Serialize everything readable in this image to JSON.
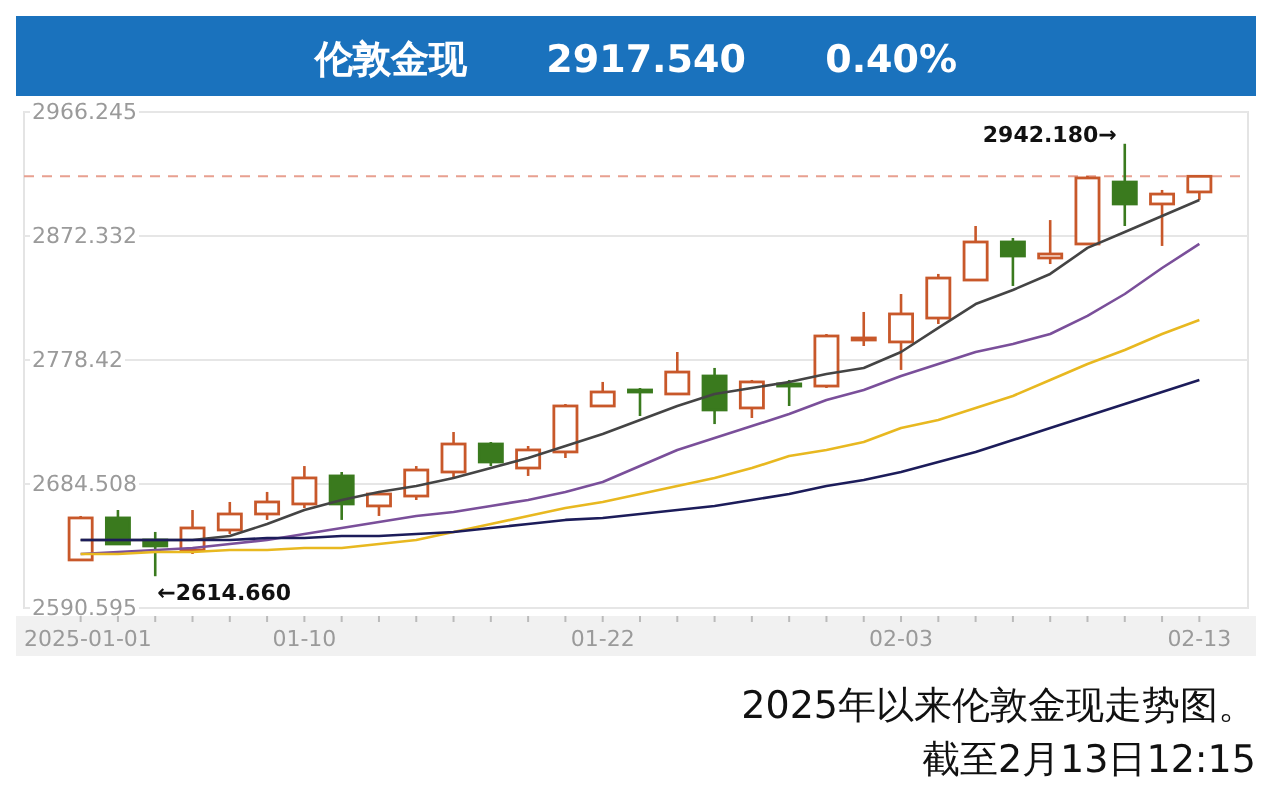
{
  "chart_data": {
    "type": "candlestick",
    "title": "伦敦金现      2917.540      0.40%",
    "annotations": [
      "2942.180→",
      "←2614.660",
      "2025年以来伦敦金现走势图。",
      "截至2月13日12:15"
    ],
    "categories": [
      "2025-01-01",
      null,
      null,
      null,
      null,
      null,
      "01-10",
      null,
      null,
      null,
      null,
      null,
      null,
      null,
      "01-22",
      null,
      null,
      null,
      null,
      null,
      null,
      null,
      "02-03",
      null,
      null,
      null,
      null,
      null,
      null,
      null,
      "02-13"
    ],
    "ohlc": [
      [
        2627.0,
        2660.3,
        2627.0,
        2658.8
      ],
      [
        2658.8,
        2664.8,
        2639.1,
        2639.1
      ],
      [
        2642.1,
        2648.2,
        2614.66,
        2637.6
      ],
      [
        2634.5,
        2664.8,
        2631.5,
        2651.2
      ],
      [
        2649.7,
        2670.9,
        2646.6,
        2661.8
      ],
      [
        2661.8,
        2678.5,
        2657.3,
        2670.9
      ],
      [
        2669.4,
        2698.1,
        2666.3,
        2689.1
      ],
      [
        2690.6,
        2693.6,
        2657.3,
        2669.4
      ],
      [
        2667.9,
        2678.5,
        2660.3,
        2676.9
      ],
      [
        2675.4,
        2698.1,
        2672.4,
        2695.1
      ],
      [
        2693.6,
        2723.9,
        2689.1,
        2714.8
      ],
      [
        2714.8,
        2716.3,
        2698.1,
        2701.2
      ],
      [
        2696.6,
        2713.3,
        2690.6,
        2710.3
      ],
      [
        2708.8,
        2745.1,
        2704.2,
        2743.6
      ],
      [
        2743.6,
        2761.8,
        2743.6,
        2754.2
      ],
      [
        2755.7,
        2757.2,
        2736.0,
        2754.2
      ],
      [
        2752.7,
        2784.5,
        2752.7,
        2769.3
      ],
      [
        2766.3,
        2772.4,
        2729.9,
        2740.6
      ],
      [
        2742.1,
        2763.3,
        2734.5,
        2761.8
      ],
      [
        2760.3,
        2763.3,
        2743.6,
        2758.7
      ],
      [
        2758.7,
        2798.1,
        2757.2,
        2796.6
      ],
      [
        2793.6,
        2814.8,
        2789.0,
        2795.1
      ],
      [
        2792.1,
        2828.4,
        2770.9,
        2813.3
      ],
      [
        2810.2,
        2843.6,
        2805.7,
        2840.5
      ],
      [
        2839.0,
        2879.9,
        2839.0,
        2867.8
      ],
      [
        2867.8,
        2870.8,
        2834.5,
        2857.2
      ],
      [
        2855.7,
        2884.4,
        2851.1,
        2858.7
      ],
      [
        2866.3,
        2917.8,
        2866.3,
        2916.3
      ],
      [
        2913.2,
        2942.18,
        2879.9,
        2896.6
      ],
      [
        2896.6,
        2907.2,
        2864.8,
        2904.1
      ],
      [
        2905.7,
        2917.54,
        2899.6,
        2917.54
      ]
    ],
    "colors": [
      "#c8582a",
      "#3a7a1e",
      "#3a7a1e",
      "#c8582a",
      "#c8582a",
      "#c8582a",
      "#c8582a",
      "#3a7a1e",
      "#c8582a",
      "#c8582a",
      "#c8582a",
      "#3a7a1e",
      "#c8582a",
      "#c8582a",
      "#c8582a",
      "#3a7a1e",
      "#c8582a",
      "#3a7a1e",
      "#c8582a",
      "#3a7a1e",
      "#c8582a",
      "#c8582a",
      "#c8582a",
      "#c8582a",
      "#c8582a",
      "#3a7a1e",
      "#c8582a",
      "#c8582a",
      "#3a7a1e",
      "#c8582a",
      "#c8582a"
    ],
    "series": [
      {
        "type": "line",
        "color": "#444444",
        "values": [
          2642.1,
          2642.1,
          2642.1,
          2642.1,
          2645.1,
          2654.2,
          2664.8,
          2672.4,
          2678.5,
          2683.0,
          2689.1,
          2696.6,
          2704.2,
          2713.3,
          2722.4,
          2733.0,
          2743.6,
          2752.7,
          2757.2,
          2761.8,
          2767.8,
          2772.4,
          2784.5,
          2802.7,
          2820.8,
          2831.4,
          2843.6,
          2863.3,
          2875.4,
          2887.5,
          2899.6
        ]
      },
      {
        "type": "line",
        "color": "#7a4f9a",
        "values": [
          2631.5,
          2633.0,
          2634.5,
          2636.0,
          2639.1,
          2642.1,
          2646.6,
          2651.2,
          2655.7,
          2660.3,
          2663.3,
          2667.9,
          2672.4,
          2678.5,
          2686.0,
          2698.1,
          2710.3,
          2719.4,
          2728.4,
          2737.5,
          2748.1,
          2755.7,
          2766.3,
          2775.4,
          2784.5,
          2790.5,
          2798.1,
          2811.8,
          2828.4,
          2848.1,
          2866.3
        ]
      },
      {
        "type": "line",
        "color": "#e8b820",
        "values": [
          2631.5,
          2631.5,
          2633.0,
          2633.0,
          2634.5,
          2634.5,
          2636.0,
          2636.0,
          2639.1,
          2642.1,
          2648.2,
          2654.2,
          2660.3,
          2666.3,
          2670.9,
          2676.9,
          2683.0,
          2689.1,
          2696.6,
          2705.7,
          2710.3,
          2716.3,
          2726.9,
          2733.0,
          2742.1,
          2751.2,
          2763.3,
          2775.4,
          2786.0,
          2798.1,
          2808.7
        ]
      },
      {
        "type": "line",
        "color": "#1c1c5a",
        "values": [
          2642.1,
          2642.1,
          2642.1,
          2642.1,
          2642.1,
          2643.6,
          2643.6,
          2645.1,
          2645.1,
          2646.6,
          2648.2,
          2651.2,
          2654.2,
          2657.3,
          2658.8,
          2661.8,
          2664.8,
          2667.9,
          2672.4,
          2676.9,
          2683.0,
          2687.5,
          2693.6,
          2701.2,
          2708.8,
          2717.8,
          2726.9,
          2736.0,
          2745.1,
          2754.2,
          2763.3
        ]
      }
    ],
    "ylim": [
      2590.595,
      2966.245
    ],
    "yticks": [
      2590.595,
      2684.508,
      2778.42,
      2872.332,
      2966.245
    ],
    "ref_lines": [
      {
        "axis": "y",
        "value": 2917.54,
        "color": "#e8a090",
        "line_style": "dashed"
      }
    ],
    "grid": "y"
  }
}
